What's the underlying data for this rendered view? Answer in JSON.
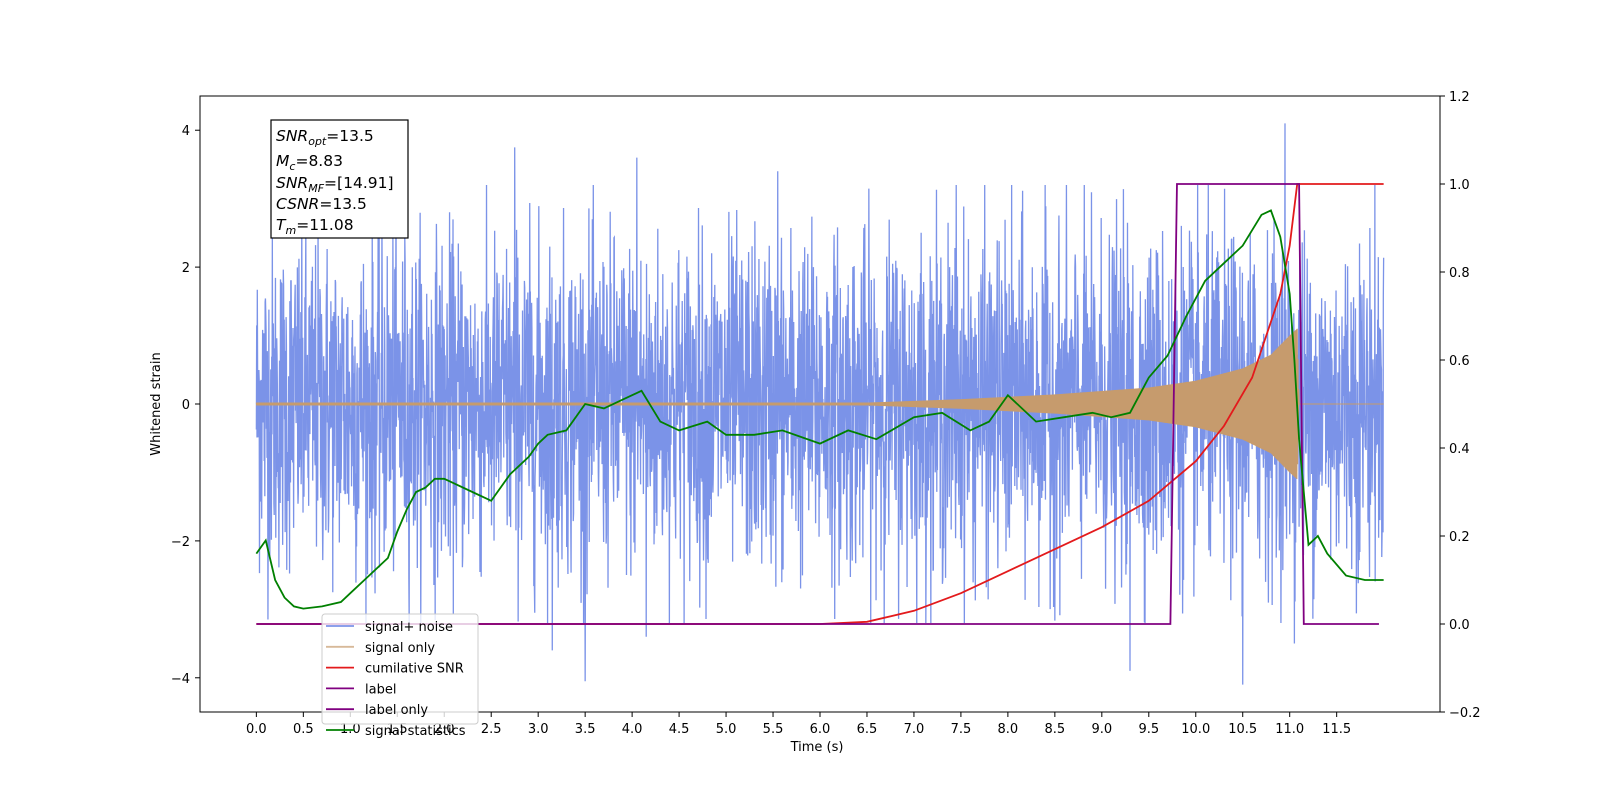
{
  "chart_data": {
    "type": "line",
    "xlabel": "Time (s)",
    "ylabel_left": "Whitened strain",
    "ylabel_right": "",
    "xlim": [
      -0.6,
      12.6
    ],
    "ylim_left": [
      -4.5,
      4.5
    ],
    "ylim_right": [
      -0.2,
      1.2
    ],
    "x_ticks": [
      0.0,
      0.5,
      1.0,
      1.5,
      2.0,
      2.5,
      3.0,
      3.5,
      4.0,
      4.5,
      5.0,
      5.5,
      6.0,
      6.5,
      7.0,
      7.5,
      8.0,
      8.5,
      9.0,
      9.5,
      10.0,
      10.5,
      11.0,
      11.5
    ],
    "x_tick_labels": [
      "0.0",
      "0.5",
      "1.0",
      "1.5",
      "2.0",
      "2.5",
      "3.0",
      "3.5",
      "4.0",
      "4.5",
      "5.0",
      "5.5",
      "6.0",
      "6.5",
      "7.0",
      "7.5",
      "8.0",
      "8.5",
      "9.0",
      "9.5",
      "10.0",
      "10.5",
      "11.0",
      "11.5"
    ],
    "left_ticks": [
      -4,
      -2,
      0,
      2,
      4
    ],
    "left_tick_labels": [
      "−4",
      "−2",
      "0",
      "2",
      "4"
    ],
    "right_ticks": [
      -0.2,
      0.0,
      0.2,
      0.4,
      0.6,
      0.8,
      1.0,
      1.2
    ],
    "right_tick_labels": [
      "−0.2",
      "0.0",
      "0.2",
      "0.4",
      "0.6",
      "0.8",
      "1.0",
      "1.2"
    ],
    "legend_position": "lower-left",
    "annotation": {
      "snr_opt": "13.5",
      "mc": "8.83",
      "snr_mf": "[14.91]",
      "csnr": "13.5",
      "tm": "11.08"
    },
    "series": [
      {
        "name": "signal+ noise",
        "axis": "left",
        "color": "#7b93e8",
        "kind": "noise",
        "x_range": [
          0.0,
          12.0
        ],
        "typical_amplitude": 1.6,
        "peaks": [
          [
            2.75,
            3.75
          ],
          [
            4.05,
            3.6
          ],
          [
            5.55,
            3.4
          ],
          [
            7.45,
            3.2
          ],
          [
            10.95,
            4.1
          ],
          [
            3.5,
            -4.05
          ],
          [
            10.5,
            -4.1
          ],
          [
            9.3,
            -3.9
          ],
          [
            3.15,
            -3.6
          ],
          [
            4.15,
            -3.4
          ],
          [
            11.05,
            -3.5
          ]
        ]
      },
      {
        "name": "signal only",
        "axis": "left",
        "color": "#c69b6d",
        "kind": "chirp",
        "x": [
          0.0,
          6.5,
          7.5,
          8.5,
          9.5,
          10.0,
          10.5,
          10.8,
          11.0,
          11.08,
          11.1,
          12.0
        ],
        "envelope": [
          0.02,
          0.02,
          0.07,
          0.14,
          0.24,
          0.34,
          0.52,
          0.72,
          1.0,
          1.1,
          0.0,
          0.0
        ]
      },
      {
        "name": "cumilative SNR",
        "axis": "right",
        "color": "#e31a1c",
        "x": [
          0.0,
          6.0,
          6.5,
          7.0,
          7.5,
          8.0,
          8.5,
          9.0,
          9.5,
          10.0,
          10.3,
          10.6,
          10.9,
          11.0,
          11.08,
          11.1,
          12.0
        ],
        "values": [
          0.0,
          0.0,
          0.005,
          0.03,
          0.07,
          0.12,
          0.17,
          0.22,
          0.28,
          0.37,
          0.45,
          0.56,
          0.75,
          0.86,
          1.0,
          1.0,
          1.0
        ]
      },
      {
        "name": "label",
        "axis": "right",
        "color": "#800080",
        "x": [
          0.0,
          9.73,
          9.8,
          11.1,
          11.15,
          11.95
        ],
        "values": [
          0.0,
          0.0,
          1.0,
          1.0,
          0.0,
          0.0
        ]
      },
      {
        "name": "label only",
        "axis": "right",
        "color": "#800080",
        "hidden": true,
        "x": [],
        "values": []
      },
      {
        "name": "signal statistics",
        "axis": "right",
        "color": "#008000",
        "x": [
          0.0,
          0.1,
          0.2,
          0.3,
          0.4,
          0.5,
          0.7,
          0.9,
          1.0,
          1.2,
          1.4,
          1.5,
          1.6,
          1.7,
          1.8,
          1.9,
          2.0,
          2.1,
          2.3,
          2.5,
          2.7,
          2.9,
          3.0,
          3.1,
          3.3,
          3.5,
          3.7,
          3.9,
          4.1,
          4.3,
          4.5,
          4.8,
          5.0,
          5.3,
          5.6,
          6.0,
          6.3,
          6.6,
          7.0,
          7.3,
          7.6,
          7.8,
          8.0,
          8.3,
          8.6,
          8.9,
          9.1,
          9.3,
          9.5,
          9.7,
          9.9,
          10.1,
          10.3,
          10.5,
          10.7,
          10.8,
          10.9,
          11.0,
          11.05,
          11.1,
          11.2,
          11.3,
          11.4,
          11.6,
          11.8,
          12.0
        ],
        "values": [
          0.16,
          0.19,
          0.1,
          0.06,
          0.04,
          0.035,
          0.04,
          0.05,
          0.07,
          0.11,
          0.15,
          0.21,
          0.26,
          0.3,
          0.31,
          0.33,
          0.33,
          0.32,
          0.3,
          0.28,
          0.34,
          0.38,
          0.41,
          0.43,
          0.44,
          0.5,
          0.49,
          0.51,
          0.53,
          0.46,
          0.44,
          0.46,
          0.43,
          0.43,
          0.44,
          0.41,
          0.44,
          0.42,
          0.47,
          0.48,
          0.44,
          0.46,
          0.52,
          0.46,
          0.47,
          0.48,
          0.47,
          0.48,
          0.56,
          0.61,
          0.7,
          0.78,
          0.82,
          0.86,
          0.93,
          0.94,
          0.88,
          0.75,
          0.6,
          0.42,
          0.18,
          0.2,
          0.16,
          0.11,
          0.1,
          0.1
        ]
      }
    ]
  }
}
